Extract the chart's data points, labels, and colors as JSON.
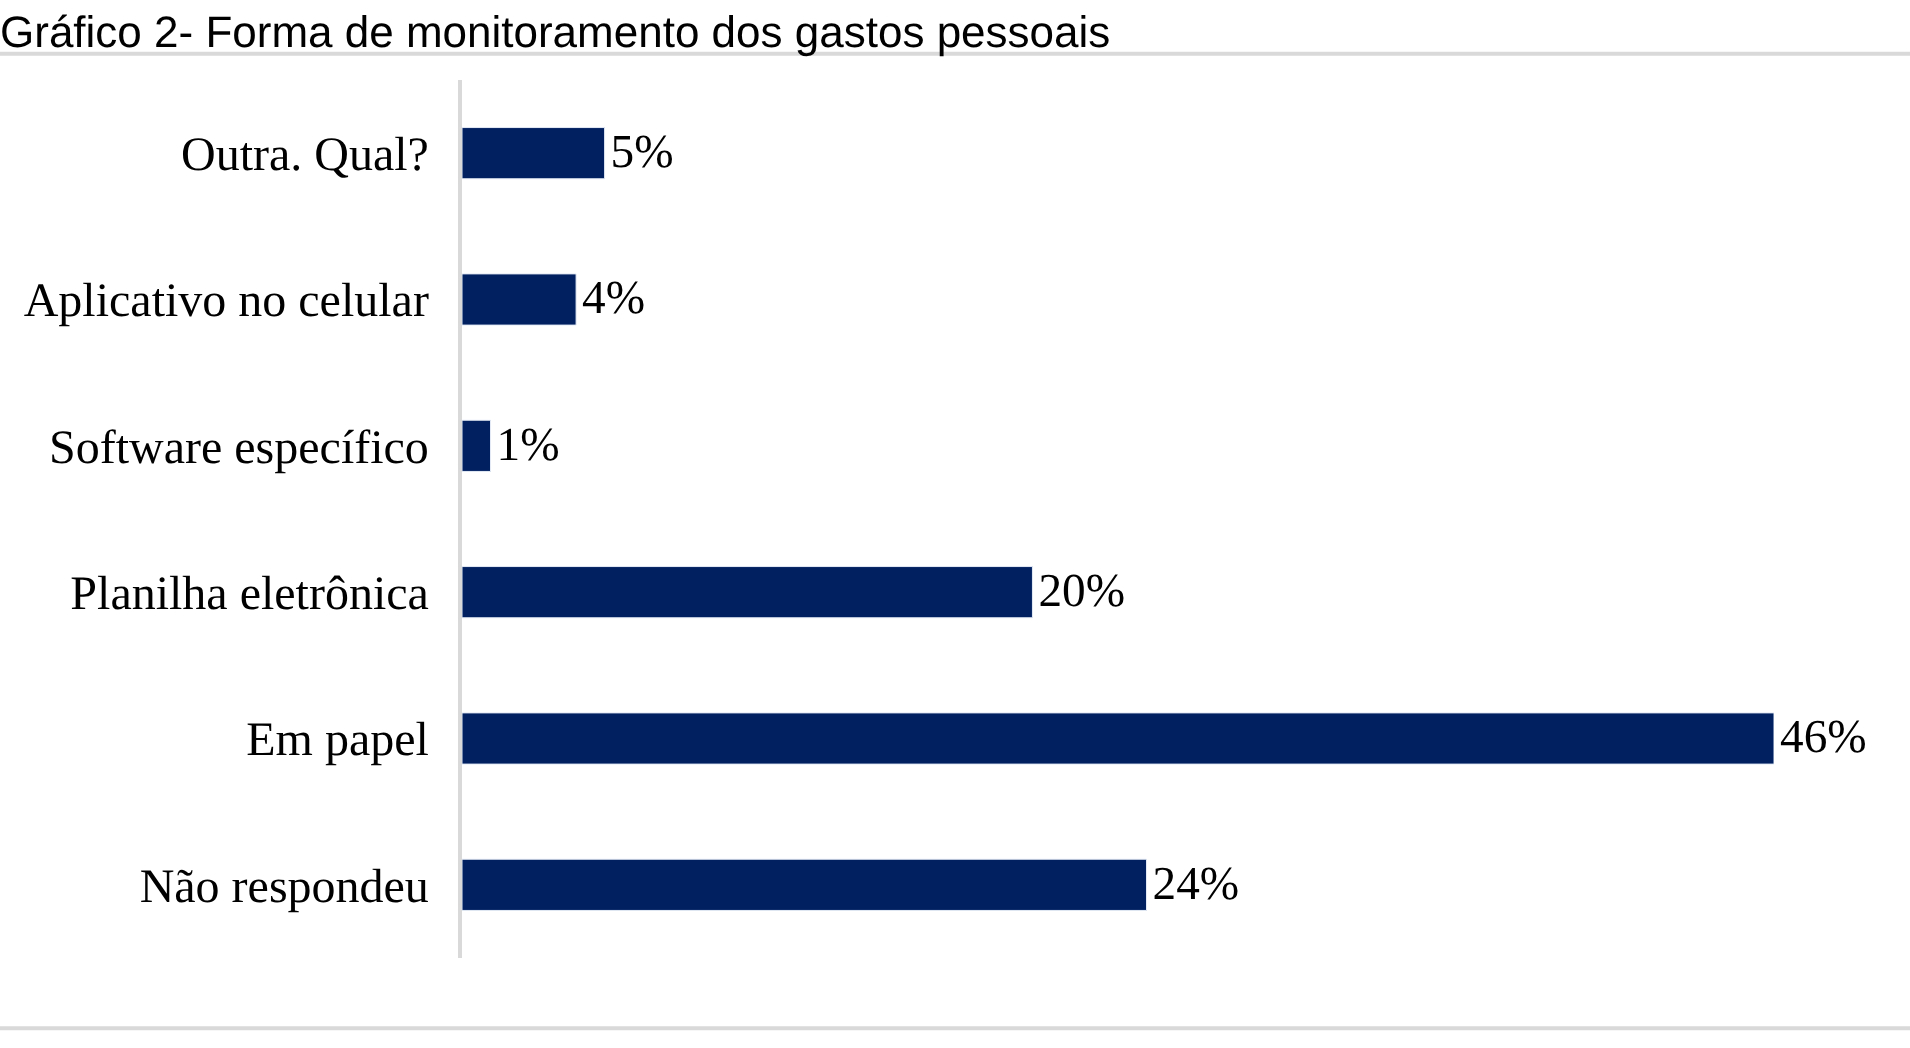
{
  "chart_data": {
    "type": "bar",
    "orientation": "horizontal",
    "title": "Gráfico 2- Forma de monitoramento dos gastos pessoais",
    "categories": [
      "Outra. Qual?",
      "Aplicativo no celular",
      "Software específico",
      "Planilha eletrônica",
      "Em papel",
      "Não respondeu"
    ],
    "values": [
      5,
      4,
      1,
      20,
      46,
      24
    ],
    "value_labels": [
      "5%",
      "4%",
      "1%",
      "20%",
      "46%",
      "24%"
    ],
    "color": "#002060",
    "xlim": [
      0,
      46
    ]
  }
}
